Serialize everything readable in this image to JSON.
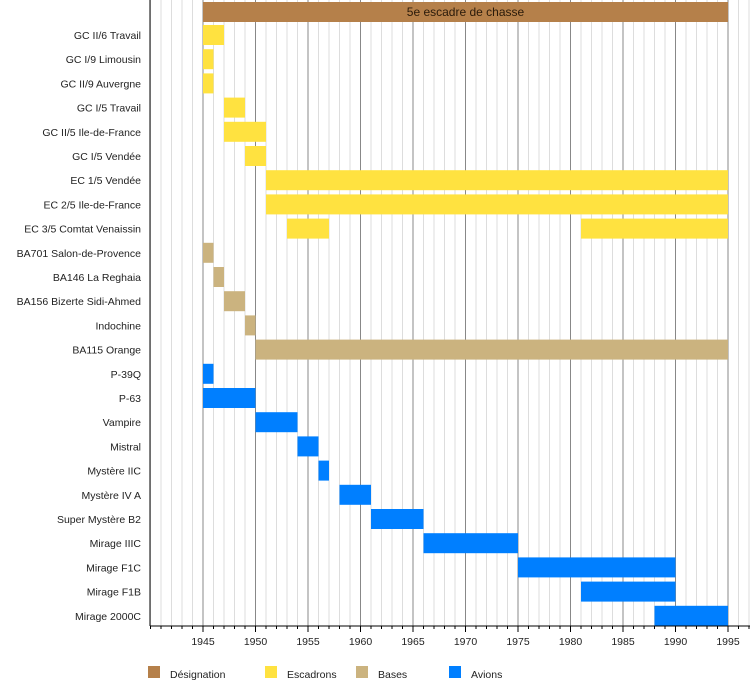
{
  "chart_data": {
    "type": "timeline",
    "title": "5e escadre de chasse",
    "xlabel": "",
    "ylabel": "",
    "xlim": [
      1940,
      1997
    ],
    "major_ticks": [
      1945,
      1950,
      1955,
      1960,
      1965,
      1970,
      1975,
      1980,
      1985,
      1990,
      1995
    ],
    "minor_tick_interval": 1,
    "grid": true,
    "legend_position": "bottom-left",
    "legend": [
      {
        "key": "designation",
        "label": "Désignation",
        "color": "#b5804a"
      },
      {
        "key": "escadrons",
        "label": "Escadrons",
        "color": "#ffe240"
      },
      {
        "key": "bases",
        "label": "Bases",
        "color": "#cbb37f"
      },
      {
        "key": "avions",
        "label": "Avions",
        "color": "#007fff"
      }
    ],
    "designation_bar": {
      "label": "5e escadre de chasse",
      "start": 1945,
      "end": 1995,
      "category": "designation"
    },
    "rows": [
      {
        "label": "GC II/6 Travail",
        "category": "escadrons",
        "spans": [
          [
            1945,
            1947
          ]
        ]
      },
      {
        "label": "GC I/9 Limousin",
        "category": "escadrons",
        "spans": [
          [
            1945,
            1946
          ]
        ]
      },
      {
        "label": "GC II/9 Auvergne",
        "category": "escadrons",
        "spans": [
          [
            1945,
            1946
          ]
        ]
      },
      {
        "label": "GC I/5 Travail",
        "category": "escadrons",
        "spans": [
          [
            1947,
            1949
          ]
        ]
      },
      {
        "label": "GC II/5 Ile-de-France",
        "category": "escadrons",
        "spans": [
          [
            1947,
            1951
          ]
        ]
      },
      {
        "label": "GC I/5 Vendée",
        "category": "escadrons",
        "spans": [
          [
            1949,
            1951
          ]
        ]
      },
      {
        "label": "EC 1/5 Vendée",
        "category": "escadrons",
        "spans": [
          [
            1951,
            1995
          ]
        ]
      },
      {
        "label": "EC 2/5 Ile-de-France",
        "category": "escadrons",
        "spans": [
          [
            1951,
            1995
          ]
        ]
      },
      {
        "label": "EC 3/5 Comtat Venaissin",
        "category": "escadrons",
        "spans": [
          [
            1953,
            1957
          ],
          [
            1981,
            1995
          ]
        ]
      },
      {
        "label": "BA701 Salon-de-Provence",
        "category": "bases",
        "spans": [
          [
            1945,
            1946
          ]
        ]
      },
      {
        "label": "BA146 La Reghaia",
        "category": "bases",
        "spans": [
          [
            1946,
            1947
          ]
        ]
      },
      {
        "label": "BA156 Bizerte Sidi-Ahmed",
        "category": "bases",
        "spans": [
          [
            1947,
            1949
          ]
        ]
      },
      {
        "label": "Indochine",
        "category": "bases",
        "spans": [
          [
            1949,
            1950
          ]
        ]
      },
      {
        "label": "BA115 Orange",
        "category": "bases",
        "spans": [
          [
            1950,
            1995
          ]
        ]
      },
      {
        "label": "P-39Q",
        "category": "avions",
        "spans": [
          [
            1945,
            1946
          ]
        ]
      },
      {
        "label": "P-63",
        "category": "avions",
        "spans": [
          [
            1945,
            1950
          ]
        ]
      },
      {
        "label": "Vampire",
        "category": "avions",
        "spans": [
          [
            1950,
            1954
          ]
        ]
      },
      {
        "label": "Mistral",
        "category": "avions",
        "spans": [
          [
            1954,
            1956
          ]
        ]
      },
      {
        "label": "Mystère IIC",
        "category": "avions",
        "spans": [
          [
            1956,
            1957
          ]
        ]
      },
      {
        "label": "Mystère IV A",
        "category": "avions",
        "spans": [
          [
            1958,
            1961
          ]
        ]
      },
      {
        "label": "Super Mystère B2",
        "category": "avions",
        "spans": [
          [
            1961,
            1966
          ]
        ]
      },
      {
        "label": "Mirage IIIC",
        "category": "avions",
        "spans": [
          [
            1966,
            1975
          ]
        ]
      },
      {
        "label": "Mirage F1C",
        "category": "avions",
        "spans": [
          [
            1975,
            1990
          ]
        ]
      },
      {
        "label": "Mirage F1B",
        "category": "avions",
        "spans": [
          [
            1981,
            1990
          ]
        ]
      },
      {
        "label": "Mirage 2000C",
        "category": "avions",
        "spans": [
          [
            1988,
            1995
          ]
        ]
      }
    ]
  }
}
